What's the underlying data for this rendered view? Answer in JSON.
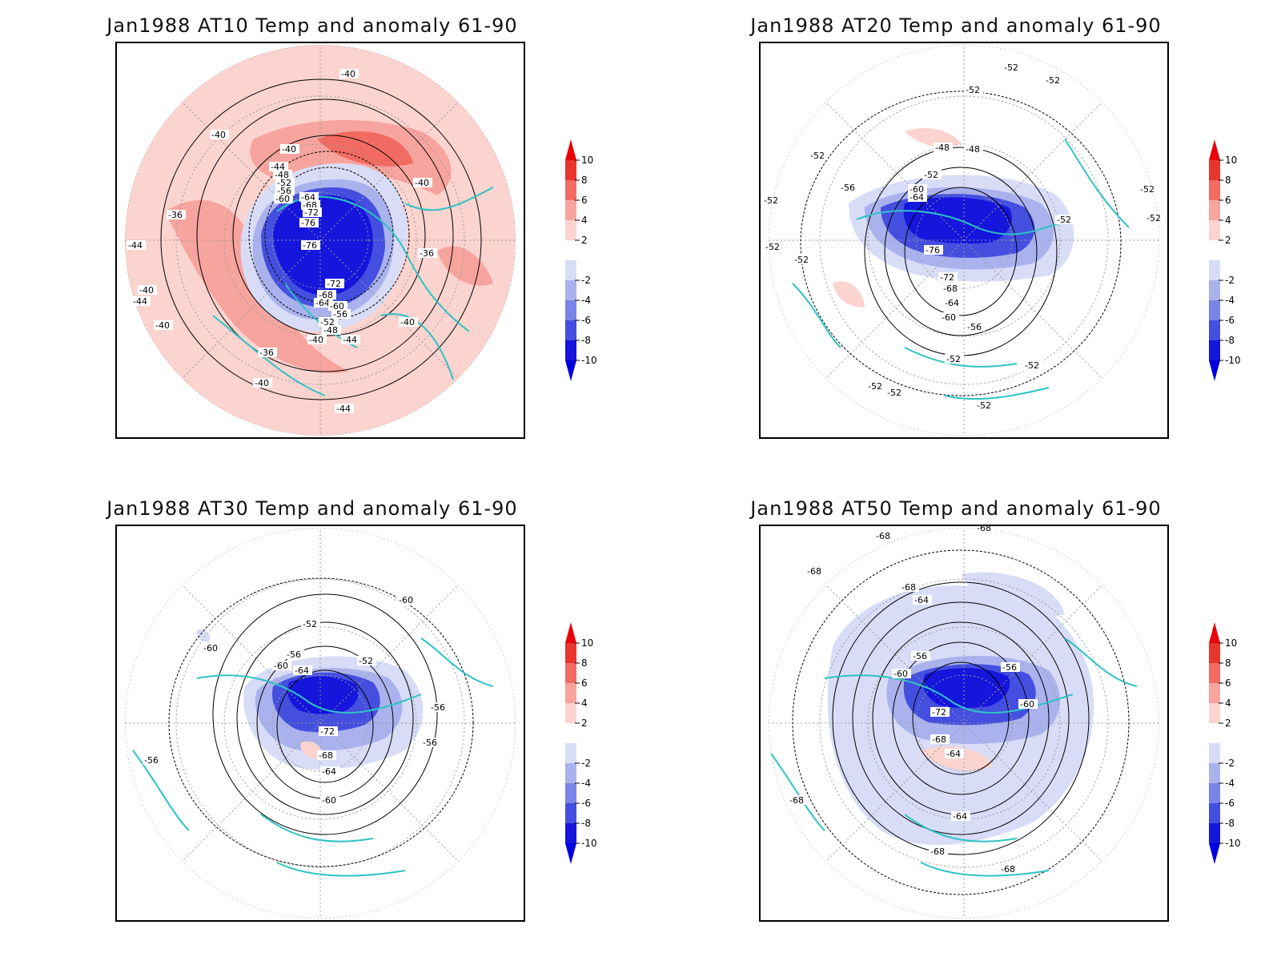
{
  "panels": [
    {
      "id": "at10",
      "title": "Jan1988 AT10 Temp and anomaly 61-90",
      "contour_labels": [
        "-40",
        "-40",
        "-40",
        "-44",
        "-48",
        "-52",
        "-56",
        "-60",
        "-64",
        "-68",
        "-72",
        "-76",
        "-76",
        "-72",
        "-68",
        "-64",
        "-60",
        "-56",
        "-52",
        "-48",
        "-40",
        "-44",
        "-40",
        "-36",
        "-36",
        "-44",
        "-40",
        "-44",
        "-40",
        "-40",
        "-36",
        "-40",
        "-44"
      ]
    },
    {
      "id": "at20",
      "title": "Jan1988 AT20 Temp and anomaly 61-90",
      "contour_labels": [
        "-52",
        "-52",
        "-52",
        "-52",
        "-48",
        "-48",
        "-52",
        "-56",
        "-60",
        "-64",
        "-76",
        "-72",
        "-68",
        "-64",
        "-60",
        "-56",
        "-52",
        "-52",
        "-52",
        "-52",
        "-52",
        "-52",
        "-52",
        "-52",
        "-52",
        "-52",
        "-52"
      ]
    },
    {
      "id": "at30",
      "title": "Jan1988 AT30 Temp and anomaly 61-90",
      "contour_labels": [
        "-60",
        "-60",
        "-52",
        "-56",
        "-60",
        "-64",
        "-52",
        "-56",
        "-56",
        "-56",
        "-72",
        "-68",
        "-64",
        "-60"
      ]
    },
    {
      "id": "at50",
      "title": "Jan1988 AT50 Temp and anomaly 61-90",
      "contour_labels": [
        "-68",
        "-68",
        "-68",
        "-68",
        "-64",
        "-56",
        "-60",
        "-56",
        "-60",
        "-72",
        "-68",
        "-64",
        "-68",
        "-64",
        "-68",
        "-68"
      ]
    }
  ],
  "colorbar": {
    "labels": [
      "10",
      "8",
      "6",
      "4",
      "2",
      "-2",
      "-4",
      "-6",
      "-8",
      "-10"
    ],
    "colors": [
      "#e8352e",
      "#f26b62",
      "#f7a49e",
      "#fbd3cf",
      "#ffffff",
      "#d8dcf6",
      "#aab2ee",
      "#7a84e6",
      "#444fe0",
      "#1515dc"
    ]
  },
  "style": {
    "coast_color": "#2ec3c3",
    "contour_color": "#000000",
    "grid_color": "#999999"
  }
}
